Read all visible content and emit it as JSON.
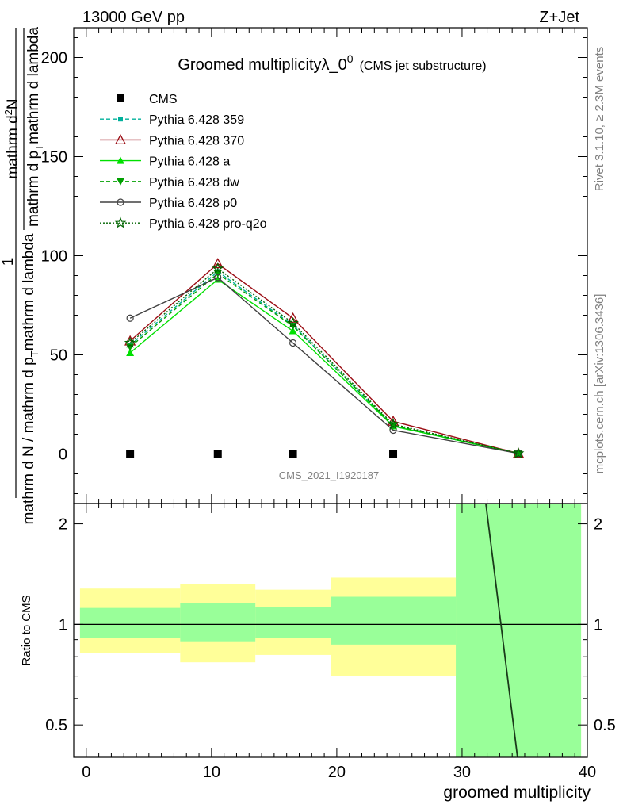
{
  "header": {
    "left": "13000 GeV pp",
    "right": "Z+Jet"
  },
  "side": {
    "rivet": "Rivet 3.1.10, ≥ 2.3M events",
    "mcplots": "mcplots.cern.ch [arXiv:1306.3436]"
  },
  "chart_data": [
    {
      "type": "line",
      "title_main": "Groomed multiplicityλ_0",
      "title_sup": "0",
      "title_sub": "(CMS jet substructure)",
      "analysis_id": "CMS_2021_I1920187",
      "ylabel_den": "mathrm d N / mathrm d p",
      "ylabel_den_sub": "T",
      "ylabel_den_rest": "mathrm d lambda",
      "ylabel_num": "mathrm d",
      "ylabel_num_sup": "2",
      "ylabel_num_rest": "N",
      "ylabel_den2": "mathrm d p",
      "ylabel_den2_sub": "T",
      "ylabel_den2_rest": "mathrm d lambda",
      "ylabel_one": "1",
      "xlim": [
        -1,
        40
      ],
      "ylim": [
        -25,
        215
      ],
      "yticks": [
        0,
        50,
        100,
        150,
        200
      ],
      "legend_position": "top-left",
      "series": [
        {
          "name": "CMS",
          "color": "#000000",
          "marker": "square",
          "line": "none",
          "x": [
            3.5,
            10.5,
            16.5,
            24.5,
            34.5
          ],
          "y": [
            0,
            0,
            0,
            0,
            0
          ]
        },
        {
          "name": "Pythia 6.428 359",
          "color": "#00b09b",
          "marker": "smallsquare",
          "line": "dashed",
          "x": [
            3.5,
            10.5,
            16.5,
            24.5,
            34.5
          ],
          "y": [
            55,
            92,
            65,
            14,
            0.3
          ]
        },
        {
          "name": "Pythia 6.428 370",
          "color": "#9b0d14",
          "marker": "triangle-open",
          "line": "solid",
          "x": [
            3.5,
            10.5,
            16.5,
            24.5,
            34.5
          ],
          "y": [
            57,
            96,
            68.5,
            16.5,
            0.3
          ]
        },
        {
          "name": "Pythia 6.428 a",
          "color": "#00e000",
          "marker": "triangle",
          "line": "solid",
          "x": [
            3.5,
            10.5,
            16.5,
            24.5,
            34.5
          ],
          "y": [
            51,
            88,
            62,
            14,
            0.3
          ]
        },
        {
          "name": "Pythia 6.428 dw",
          "color": "#00a000",
          "marker": "triangle-down",
          "line": "dashed",
          "x": [
            3.5,
            10.5,
            16.5,
            24.5,
            34.5
          ],
          "y": [
            54,
            91,
            64.5,
            14.5,
            0.3
          ]
        },
        {
          "name": "Pythia 6.428 p0",
          "color": "#404040",
          "marker": "circle-open",
          "line": "solid",
          "x": [
            3.5,
            10.5,
            16.5,
            24.5,
            34.5
          ],
          "y": [
            68.5,
            89,
            56,
            12,
            0.3
          ]
        },
        {
          "name": "Pythia 6.428 pro-q2o",
          "color": "#006400",
          "marker": "star",
          "line": "dotted",
          "x": [
            3.5,
            10.5,
            16.5,
            24.5,
            34.5
          ],
          "y": [
            56,
            93.5,
            66,
            15,
            0.3
          ]
        }
      ]
    },
    {
      "type": "area",
      "ylabel": "Ratio to CMS",
      "xlabel": "groomed multiplicity",
      "xlim": [
        -1,
        40
      ],
      "ylim": [
        0.4,
        2.3
      ],
      "yscale": "log",
      "yticks": [
        0.5,
        1,
        2
      ],
      "xticks": [
        0,
        10,
        20,
        30,
        40
      ],
      "bands": [
        {
          "x": [
            -0.5,
            7.5
          ],
          "yellow": [
            0.82,
            1.28
          ],
          "green": [
            0.91,
            1.12
          ]
        },
        {
          "x": [
            7.5,
            13.5
          ],
          "yellow": [
            0.77,
            1.32
          ],
          "green": [
            0.89,
            1.16
          ]
        },
        {
          "x": [
            13.5,
            19.5
          ],
          "yellow": [
            0.81,
            1.27
          ],
          "green": [
            0.91,
            1.13
          ]
        },
        {
          "x": [
            19.5,
            29.5
          ],
          "yellow": [
            0.7,
            1.38
          ],
          "green": [
            0.87,
            1.21
          ]
        },
        {
          "x": [
            29.5,
            39.5
          ],
          "yellow": [
            0.38,
            2.3
          ],
          "green": [
            0.38,
            2.3
          ]
        }
      ],
      "ratio_line": {
        "color": "#1a3a1a",
        "x": [
          31.9,
          34.5
        ],
        "y": [
          2.3,
          0.38
        ]
      }
    }
  ]
}
